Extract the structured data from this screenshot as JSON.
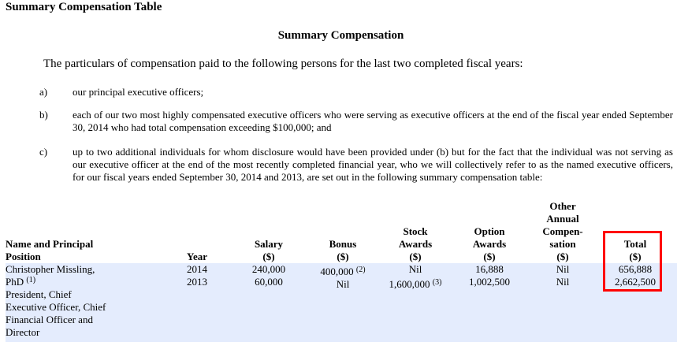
{
  "doc_title": "Summary Compensation Table",
  "section_title": "Summary Compensation",
  "intro": "The particulars of compensation paid to the following persons for the last two completed fiscal years:",
  "list": [
    {
      "label": "a)",
      "text": "our principal executive officers;"
    },
    {
      "label": "b)",
      "text": "each of our two most highly compensated executive officers who were serving as executive officers at the end of the fiscal year ended September 30, 2014 who had total compensation exceeding $100,000; and"
    },
    {
      "label": "c)",
      "text": "up to two additional individuals for whom disclosure would have been provided under (b) but for the fact that the individual was not serving as our executive officer at the end of the most recently completed financial year, who we will collectively refer to as the named executive officers, for our fiscal years ended September 30, 2014 and 2013, are set out in the following summary compensation table:"
    }
  ],
  "table": {
    "headers": {
      "name": [
        "Name and Principal",
        "Position"
      ],
      "year": [
        "Year"
      ],
      "salary": [
        "Salary",
        "($)"
      ],
      "bonus": [
        "Bonus",
        "($)"
      ],
      "stock": [
        "Stock",
        "Awards",
        "($)"
      ],
      "option": [
        "Option",
        "Awards",
        "($)"
      ],
      "other": [
        "Other",
        "Annual",
        "Compen-",
        "sation",
        "($)"
      ],
      "total": [
        "Total",
        "($)"
      ]
    },
    "row": {
      "name_lines": [
        "Christopher Missling,",
        "PhD",
        "President, Chief",
        "Executive Officer, Chief",
        "Financial Officer and",
        "Director"
      ],
      "name_footnote": "(1)",
      "years": [
        "2014",
        "2013"
      ],
      "salary": [
        "240,000",
        "60,000"
      ],
      "bonus": [
        "400,000",
        "Nil"
      ],
      "bonus_footnote": "(2)",
      "stock": [
        "Nil",
        "1,600,000"
      ],
      "stock_footnote": "(3)",
      "option": [
        "16,888",
        "1,002,500"
      ],
      "other": [
        "Nil",
        "Nil"
      ],
      "total": [
        "656,888",
        "2,662,500"
      ]
    }
  },
  "colors": {
    "row_shade": "#e4ecfd",
    "highlight": "#ff0000"
  }
}
